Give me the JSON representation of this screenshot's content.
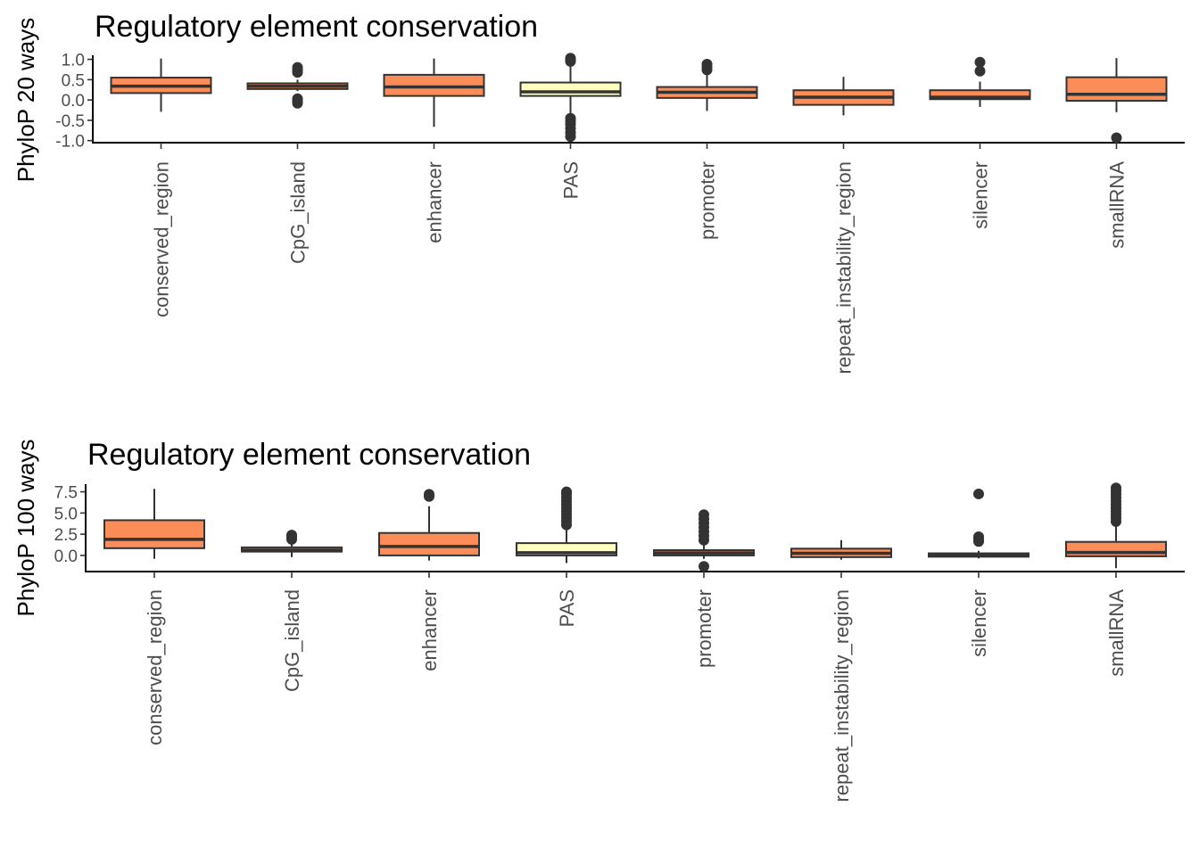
{
  "chart_data": [
    {
      "type": "box",
      "title": "Regulatory element conservation",
      "ylabel": "PhyloP 20 ways",
      "xlabel": "",
      "ylim": [
        -1.05,
        1.1
      ],
      "yticks": [
        1.0,
        0.5,
        0.0,
        -0.5,
        -1.0
      ],
      "ytick_labels": [
        "1.0",
        "0.5",
        "0.0",
        "-0.5",
        "-1.0"
      ],
      "grid": false,
      "categories": [
        "conserved_region",
        "CpG_island",
        "enhancer",
        "PAS",
        "promoter",
        "repeat_instability_region",
        "silencer",
        "smallRNA"
      ],
      "boxes": [
        {
          "q1": 0.17,
          "median": 0.34,
          "q3": 0.55,
          "whisker_low": -0.29,
          "whisker_high": 1.02,
          "outliers": [],
          "fill": "#FC8D59"
        },
        {
          "q1": 0.27,
          "median": 0.34,
          "q3": 0.41,
          "whisker_low": 0.22,
          "whisker_high": 0.5,
          "outliers": [
            0.8,
            0.74,
            0.68,
            0.03,
            -0.03,
            -0.08
          ],
          "fill": "#FC8D59"
        },
        {
          "q1": 0.1,
          "median": 0.32,
          "q3": 0.62,
          "whisker_low": -0.66,
          "whisker_high": 1.02,
          "outliers": [],
          "fill": "#FC8D59"
        },
        {
          "q1": 0.1,
          "median": 0.2,
          "q3": 0.43,
          "whisker_low": -0.4,
          "whisker_high": 0.92,
          "outliers": [
            1.03,
            0.98,
            0.95,
            -0.45,
            -0.52,
            -0.6,
            -0.7,
            -0.8,
            -0.9
          ],
          "fill": "#FFFFBF"
        },
        {
          "q1": 0.05,
          "median": 0.19,
          "q3": 0.32,
          "whisker_low": -0.27,
          "whisker_high": 0.67,
          "outliers": [
            0.88,
            0.81,
            0.74
          ],
          "fill": "#FC8D59"
        },
        {
          "q1": -0.12,
          "median": 0.07,
          "q3": 0.24,
          "whisker_low": -0.38,
          "whisker_high": 0.57,
          "outliers": [],
          "fill": "#FC8D59"
        },
        {
          "q1": 0.02,
          "median": 0.07,
          "q3": 0.24,
          "whisker_low": -0.17,
          "whisker_high": 0.45,
          "outliers": [
            0.93,
            0.71
          ],
          "fill": "#FC8D59"
        },
        {
          "q1": -0.02,
          "median": 0.14,
          "q3": 0.56,
          "whisker_low": -0.3,
          "whisker_high": 1.03,
          "outliers": [
            -0.93
          ],
          "fill": "#FC8D59"
        }
      ]
    },
    {
      "type": "box",
      "title": "Regulatory element conservation",
      "ylabel": "PhyloP 100 ways",
      "xlabel": "",
      "ylim": [
        -1.9,
        8.4
      ],
      "yticks": [
        7.5,
        5.0,
        2.5,
        0.0
      ],
      "ytick_labels": [
        "7.5",
        "5.0",
        "2.5",
        "0.0"
      ],
      "grid": false,
      "categories": [
        "conserved_region",
        "CpG_island",
        "enhancer",
        "PAS",
        "promoter",
        "repeat_instability_region",
        "silencer",
        "smallRNA"
      ],
      "boxes": [
        {
          "q1": 0.85,
          "median": 1.9,
          "q3": 4.15,
          "whisker_low": -0.4,
          "whisker_high": 7.85,
          "outliers": [],
          "fill": "#FC8D59"
        },
        {
          "q1": 0.45,
          "median": 0.62,
          "q3": 0.95,
          "whisker_low": -0.2,
          "whisker_high": 1.6,
          "outliers": [
            2.4,
            2.15,
            1.9
          ],
          "fill": "#FC8D59"
        },
        {
          "q1": 0.0,
          "median": 1.05,
          "q3": 2.65,
          "whisker_low": -0.6,
          "whisker_high": 5.8,
          "outliers": [
            7.2,
            6.95
          ],
          "fill": "#FC8D59"
        },
        {
          "q1": 0.0,
          "median": 0.32,
          "q3": 1.45,
          "whisker_low": -0.9,
          "whisker_high": 3.4,
          "outliers": [
            3.6,
            4.0,
            4.4,
            4.8,
            5.2,
            5.6,
            6.0,
            6.4,
            6.8,
            7.2,
            7.5
          ],
          "fill": "#FFFFBF"
        },
        {
          "q1": 0.0,
          "median": 0.3,
          "q3": 0.62,
          "whisker_low": -0.4,
          "whisker_high": 1.2,
          "outliers": [
            -1.3,
            1.8,
            2.3,
            2.8,
            3.3,
            3.8,
            4.3,
            4.8
          ],
          "fill": "#FC8D59"
        },
        {
          "q1": -0.2,
          "median": 0.25,
          "q3": 0.8,
          "whisker_low": -0.5,
          "whisker_high": 1.8,
          "outliers": [],
          "fill": "#FC8D59"
        },
        {
          "q1": -0.15,
          "median": 0.05,
          "q3": 0.25,
          "whisker_low": -0.35,
          "whisker_high": 0.55,
          "outliers": [
            7.25,
            2.2,
            1.9,
            1.65
          ],
          "fill": "#FC8D59"
        },
        {
          "q1": -0.1,
          "median": 0.35,
          "q3": 1.6,
          "whisker_low": -1.5,
          "whisker_high": 3.8,
          "outliers": [
            4.0,
            4.4,
            4.8,
            5.2,
            5.6,
            6.0,
            6.4,
            6.8,
            7.2,
            7.6,
            7.95
          ],
          "fill": "#FC8D59"
        }
      ]
    }
  ]
}
